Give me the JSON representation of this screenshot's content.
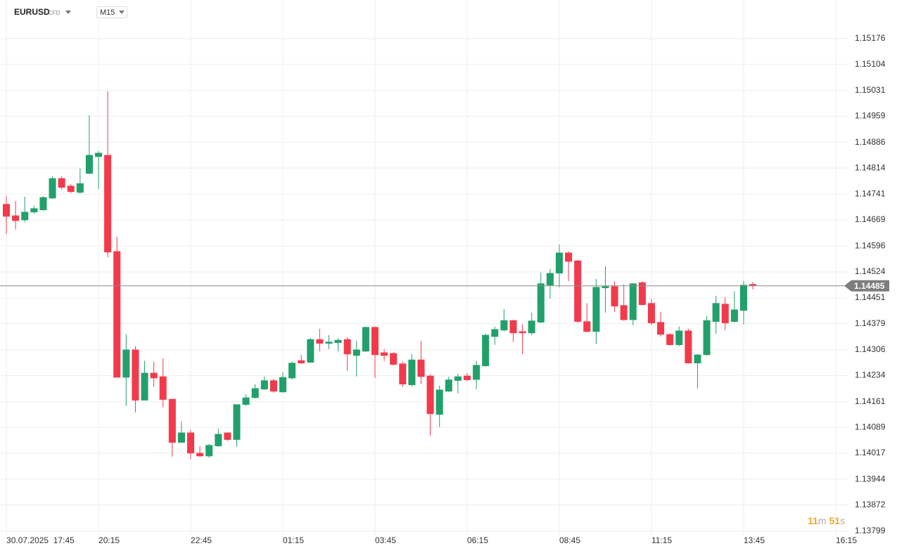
{
  "chart_data": {
    "type": "candlestick",
    "symbol": "EURUSD",
    "instrument_type": "CFD",
    "timeframe": "M15",
    "up_color": "#22a06b",
    "down_color": "#f23a4c",
    "grid": true,
    "ylim": [
      1.13787,
      1.15284
    ],
    "yticks": [
      1.15176,
      1.15104,
      1.15031,
      1.14959,
      1.14886,
      1.14814,
      1.14741,
      1.14669,
      1.14596,
      1.14524,
      1.14451,
      1.14379,
      1.14306,
      1.14234,
      1.14161,
      1.14089,
      1.14017,
      1.13944,
      1.13872,
      1.13799
    ],
    "xlim": [
      -0.69,
      91.3
    ],
    "xticks": [
      {
        "value": 0,
        "label": "30.07.2025  17:45"
      },
      {
        "value": 10,
        "label": "20:15"
      },
      {
        "value": 20,
        "label": "22:45"
      },
      {
        "value": 30,
        "label": "01:15"
      },
      {
        "value": 40,
        "label": "03:45"
      },
      {
        "value": 50,
        "label": "06:15"
      },
      {
        "value": 60,
        "label": "08:45"
      },
      {
        "value": 70,
        "label": "11:15"
      },
      {
        "value": 80,
        "label": "13:45"
      },
      {
        "value": 90,
        "label": "16:15"
      }
    ],
    "open": [
      1.14713,
      1.14681,
      1.14669,
      1.14691,
      1.14697,
      1.1473,
      1.14785,
      1.14764,
      1.14746,
      1.14799,
      1.14846,
      1.1485,
      1.14581,
      1.14229,
      1.14306,
      1.14165,
      1.14241,
      1.14231,
      1.14168,
      1.14047,
      1.14074,
      1.14017,
      1.14009,
      1.14037,
      1.14074,
      1.14055,
      1.14153,
      1.14172,
      1.14196,
      1.1422,
      1.14188,
      1.14227,
      1.14276,
      1.14271,
      1.14335,
      1.14324,
      1.14326,
      1.14335,
      1.1429,
      1.14302,
      1.14369,
      1.14298,
      1.14296,
      1.14267,
      1.14208,
      1.14278,
      1.14233,
      1.14125,
      1.1419,
      1.1422,
      1.14233,
      1.14223,
      1.14261,
      1.14343,
      1.14361,
      1.14388,
      1.14357,
      1.14353,
      1.14383,
      1.14487,
      1.1452,
      1.14577,
      1.14555,
      1.14385,
      1.14357,
      1.14479,
      1.14483,
      1.1443,
      1.1439,
      1.14494,
      1.14436,
      1.14383,
      1.14349,
      1.1432,
      1.14359,
      1.14269,
      1.14292,
      1.14385,
      1.14434,
      1.14385,
      1.14416,
      1.14489
    ],
    "high": [
      1.14736,
      1.14722,
      1.14734,
      1.14709,
      1.14736,
      1.14791,
      1.14791,
      1.14769,
      1.14813,
      1.14962,
      1.14862,
      1.15029,
      1.14622,
      1.14349,
      1.14316,
      1.14275,
      1.14273,
      1.14282,
      1.14168,
      1.14106,
      1.14082,
      1.14037,
      1.14043,
      1.14086,
      1.14074,
      1.14153,
      1.14182,
      1.1421,
      1.14231,
      1.14225,
      1.14243,
      1.14273,
      1.14292,
      1.14339,
      1.14365,
      1.14347,
      1.14339,
      1.14341,
      1.14331,
      1.14371,
      1.14371,
      1.14308,
      1.143,
      1.14273,
      1.14294,
      1.14331,
      1.14237,
      1.14206,
      1.14231,
      1.14239,
      1.14241,
      1.14275,
      1.14351,
      1.14371,
      1.1442,
      1.1439,
      1.14377,
      1.1441,
      1.14522,
      1.14532,
      1.146,
      1.14581,
      1.14557,
      1.14436,
      1.14504,
      1.1454,
      1.14498,
      1.14489,
      1.14492,
      1.14498,
      1.14449,
      1.14412,
      1.14353,
      1.14371,
      1.14365,
      1.14294,
      1.144,
      1.14457,
      1.14453,
      1.14469,
      1.14498,
      1.14496
    ],
    "low": [
      1.1463,
      1.14642,
      1.14663,
      1.14687,
      1.14695,
      1.14728,
      1.14754,
      1.14744,
      1.14742,
      1.14797,
      1.14756,
      1.14565,
      1.14229,
      1.14149,
      1.14131,
      1.14165,
      1.14202,
      1.14145,
      1.14007,
      1.14047,
      1.14,
      1.14007,
      1.14004,
      1.14035,
      1.14051,
      1.14035,
      1.14149,
      1.1417,
      1.14194,
      1.14186,
      1.14186,
      1.14223,
      1.14267,
      1.14269,
      1.14302,
      1.14308,
      1.14302,
      1.14247,
      1.14231,
      1.143,
      1.14227,
      1.14275,
      1.14261,
      1.14202,
      1.14204,
      1.1421,
      1.14066,
      1.1409,
      1.14188,
      1.14184,
      1.14218,
      1.14196,
      1.14259,
      1.1432,
      1.14357,
      1.14328,
      1.14294,
      1.14347,
      1.14381,
      1.14449,
      1.14481,
      1.14498,
      1.14381,
      1.14355,
      1.14322,
      1.1441,
      1.14412,
      1.14387,
      1.14375,
      1.1443,
      1.14375,
      1.14343,
      1.14318,
      1.14316,
      1.14267,
      1.14198,
      1.1429,
      1.14351,
      1.14361,
      1.14383,
      1.14377,
      1.14475
    ],
    "close": [
      1.14679,
      1.14667,
      1.14691,
      1.14701,
      1.14732,
      1.14785,
      1.1476,
      1.14748,
      1.14771,
      1.1485,
      1.14856,
      1.14579,
      1.14229,
      1.14306,
      1.14165,
      1.14241,
      1.14227,
      1.14167,
      1.14047,
      1.14074,
      1.14017,
      1.14009,
      1.14039,
      1.1407,
      1.14055,
      1.14153,
      1.14172,
      1.14198,
      1.1422,
      1.1419,
      1.14229,
      1.14269,
      1.14269,
      1.14335,
      1.14324,
      1.14328,
      1.14333,
      1.14294,
      1.14306,
      1.14369,
      1.14292,
      1.1429,
      1.14265,
      1.1421,
      1.14278,
      1.14231,
      1.14127,
      1.14194,
      1.14222,
      1.14231,
      1.14222,
      1.14263,
      1.14347,
      1.14363,
      1.14388,
      1.14353,
      1.14353,
      1.14387,
      1.14491,
      1.1452,
      1.14577,
      1.14553,
      1.14385,
      1.14357,
      1.14481,
      1.14483,
      1.14428,
      1.1439,
      1.14491,
      1.14432,
      1.14381,
      1.14349,
      1.1432,
      1.14359,
      1.14269,
      1.14292,
      1.14388,
      1.14436,
      1.14381,
      1.14418,
      1.14487,
      1.14485
    ],
    "current_price": 1.14485,
    "timer": {
      "minutes": "11",
      "minutes_unit": "m",
      "seconds": "51",
      "seconds_unit": "s"
    }
  }
}
